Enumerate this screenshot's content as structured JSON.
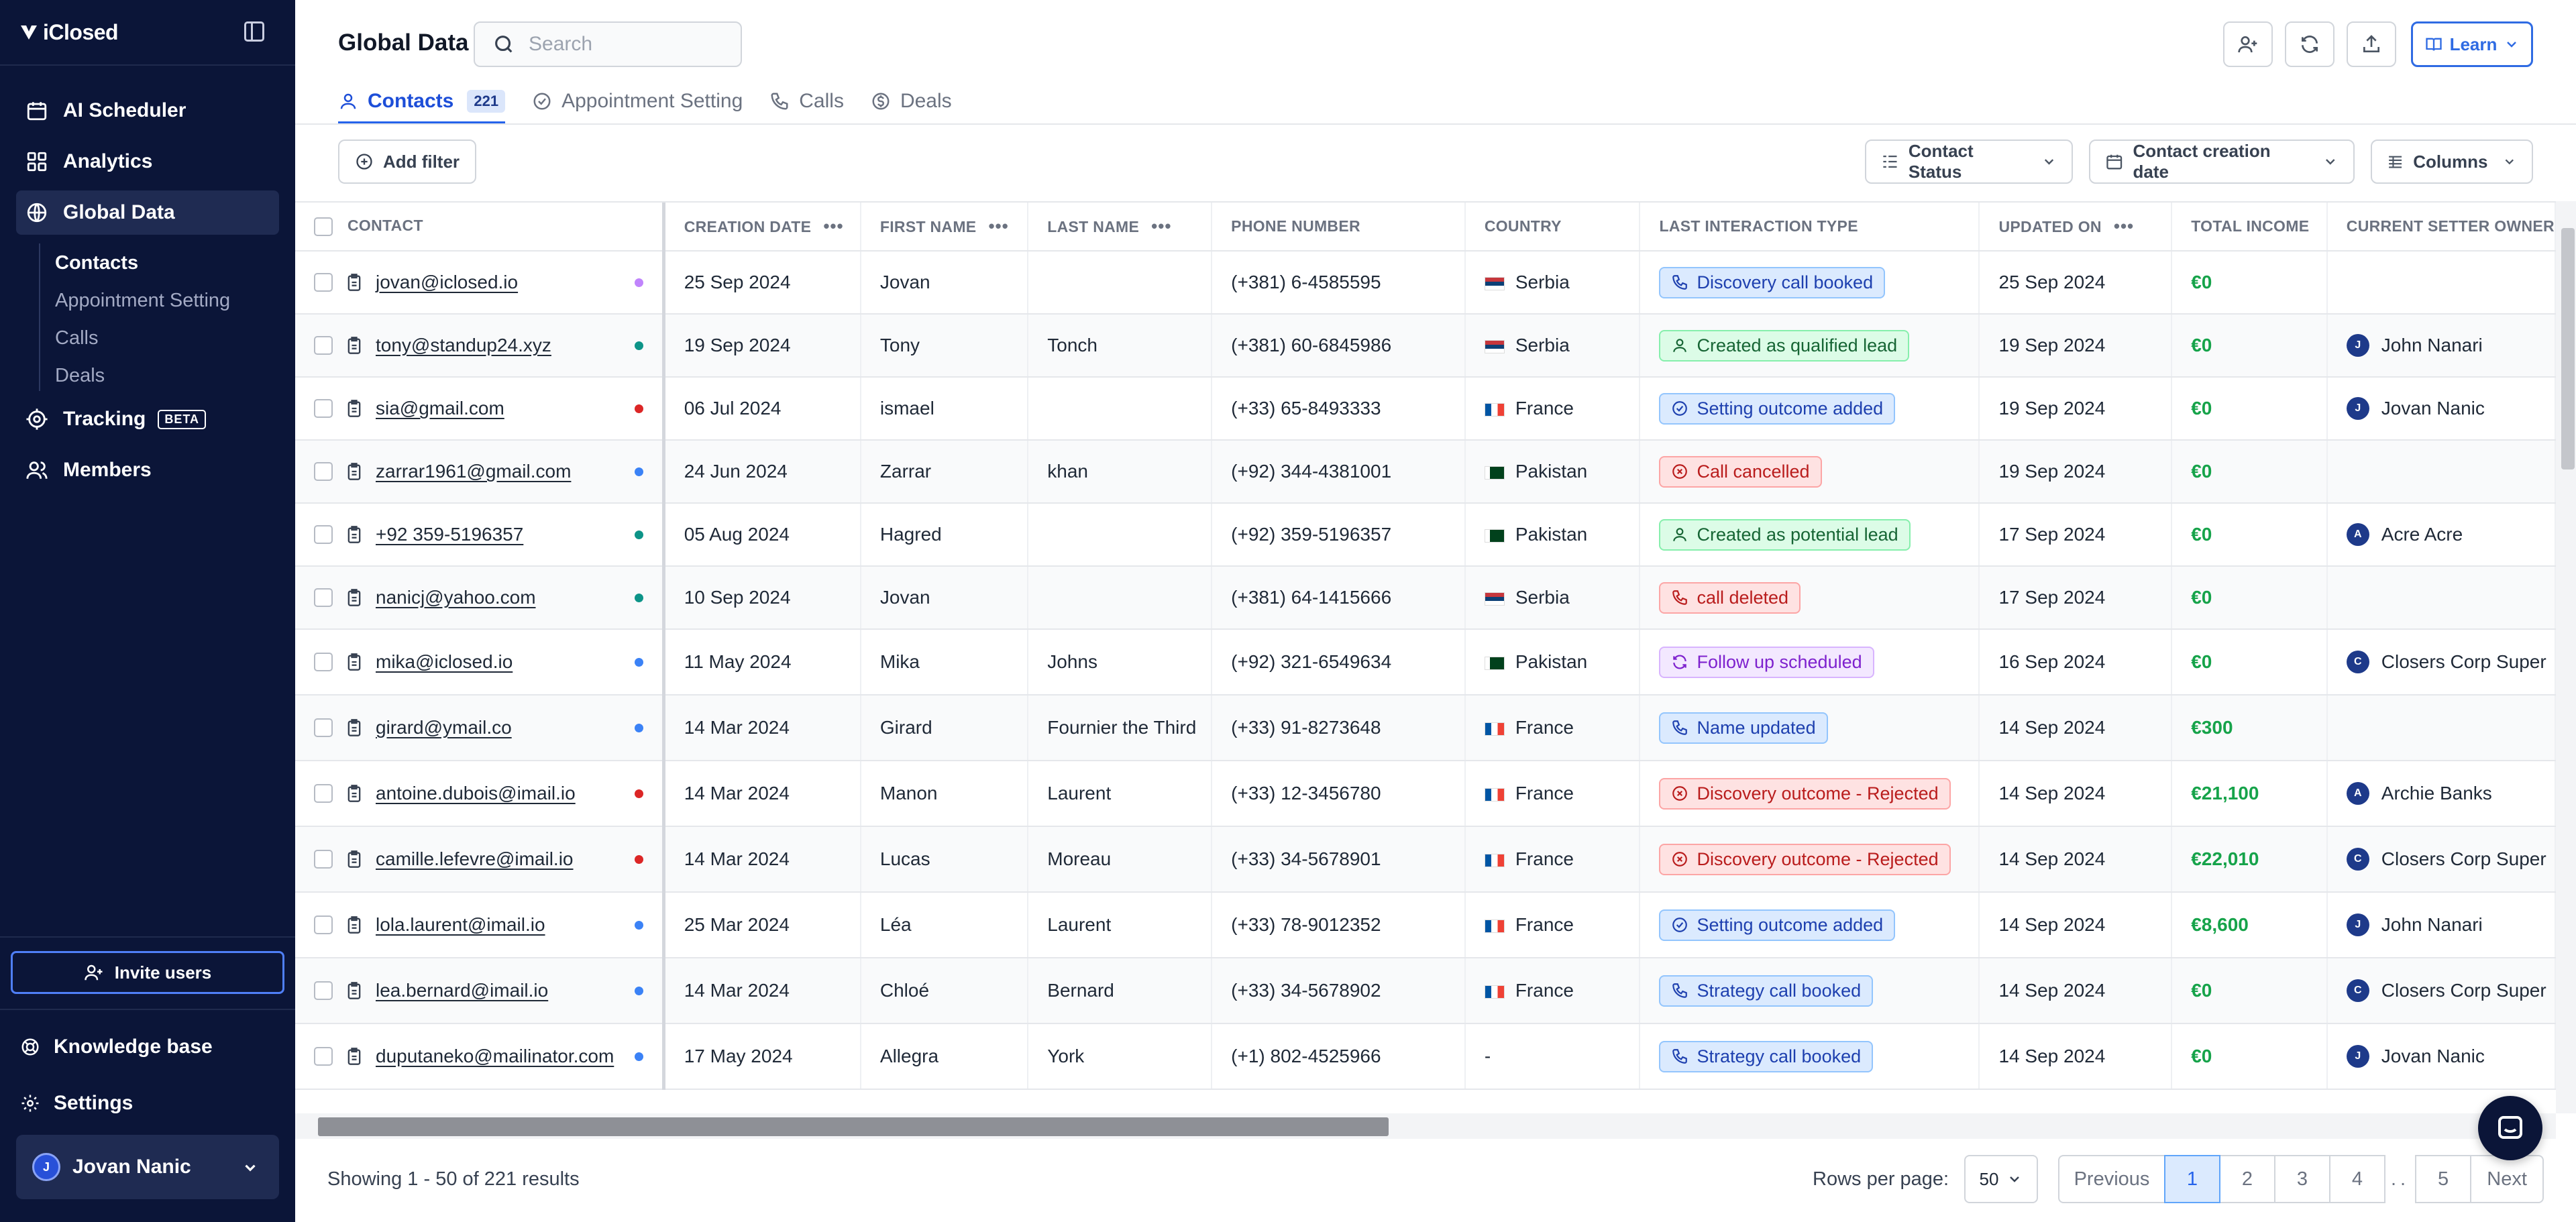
{
  "app": {
    "name": "iClosed"
  },
  "sidebar": {
    "nav": [
      {
        "label": "AI Scheduler",
        "icon": "calendar-icon"
      },
      {
        "label": "Analytics",
        "icon": "grid-icon"
      },
      {
        "label": "Global Data",
        "icon": "globe-icon"
      }
    ],
    "sub_items": [
      "Contacts",
      "Appointment Setting",
      "Calls",
      "Deals"
    ],
    "tracking": {
      "label": "Tracking",
      "badge": "BETA"
    },
    "members": "Members",
    "invite": "Invite users",
    "knowledge": "Knowledge base",
    "settings": "Settings",
    "user": {
      "name": "Jovan Nanic",
      "initial": "J"
    }
  },
  "header": {
    "title": "Global Data",
    "search_placeholder": "Search",
    "learn": "Learn"
  },
  "tabs": [
    {
      "label": "Contacts",
      "count": "221"
    },
    {
      "label": "Appointment Setting"
    },
    {
      "label": "Calls"
    },
    {
      "label": "Deals"
    }
  ],
  "toolbar": {
    "add_filter": "Add filter",
    "contact_status": "Contact Status",
    "creation_date": "Contact creation date",
    "columns": "Columns"
  },
  "table": {
    "headers": [
      "CONTACT",
      "CREATION DATE",
      "FIRST NAME",
      "LAST NAME",
      "PHONE NUMBER",
      "COUNTRY",
      "LAST INTERACTION TYPE",
      "UPDATED ON",
      "TOTAL INCOME",
      "CURRENT SETTER OWNER"
    ],
    "rows": [
      {
        "contact": "jovan@iclosed.io",
        "dot": "#c084fc",
        "created": "25 Sep 2024",
        "first": "Jovan",
        "last": "",
        "phone": "(+381) 6-4585595",
        "country": "Serbia",
        "flag": "rs",
        "interaction": "Discovery call booked",
        "itype": "blue",
        "iicon": "phone",
        "updated": "25 Sep 2024",
        "income": "€0",
        "owner": "",
        "owner_initial": ""
      },
      {
        "contact": "tony@standup24.xyz",
        "dot": "#0d9488",
        "created": "19 Sep 2024",
        "first": "Tony",
        "last": "Tonch",
        "phone": "(+381) 60-6845986",
        "country": "Serbia",
        "flag": "rs",
        "interaction": "Created as qualified lead",
        "itype": "green",
        "iicon": "user",
        "updated": "19 Sep 2024",
        "income": "€0",
        "owner": "John Nanari",
        "owner_initial": "J"
      },
      {
        "contact": "sia@gmail.com",
        "dot": "#dc2626",
        "created": "06 Jul 2024",
        "first": "ismael",
        "last": "",
        "phone": "(+33) 65-8493333",
        "country": "France",
        "flag": "fr",
        "interaction": "Setting outcome added",
        "itype": "blue",
        "iicon": "check",
        "updated": "19 Sep 2024",
        "income": "€0",
        "owner": "Jovan Nanic",
        "owner_initial": "J"
      },
      {
        "contact": "zarrar1961@gmail.com",
        "dot": "#3b82f6",
        "created": "24 Jun 2024",
        "first": "Zarrar",
        "last": "khan",
        "phone": "(+92) 344-4381001",
        "country": "Pakistan",
        "flag": "pk",
        "interaction": "Call cancelled",
        "itype": "red",
        "iicon": "x",
        "updated": "19 Sep 2024",
        "income": "€0",
        "owner": "",
        "owner_initial": ""
      },
      {
        "contact": "+92 359-5196357",
        "dot": "#0d9488",
        "created": "05 Aug 2024",
        "first": "Hagred",
        "last": "",
        "phone": "(+92) 359-5196357",
        "country": "Pakistan",
        "flag": "pk",
        "interaction": "Created as potential lead",
        "itype": "green",
        "iicon": "user",
        "updated": "17 Sep 2024",
        "income": "€0",
        "owner": "Acre Acre",
        "owner_initial": "A"
      },
      {
        "contact": "nanicj@yahoo.com",
        "dot": "#0d9488",
        "created": "10 Sep 2024",
        "first": "Jovan",
        "last": "",
        "phone": "(+381) 64-1415666",
        "country": "Serbia",
        "flag": "rs",
        "interaction": "call deleted",
        "itype": "red",
        "iicon": "phone",
        "updated": "17 Sep 2024",
        "income": "€0",
        "owner": "",
        "owner_initial": ""
      },
      {
        "contact": "mika@iclosed.io",
        "dot": "#3b82f6",
        "created": "11 May 2024",
        "first": "Mika",
        "last": "Johns",
        "phone": "(+92) 321-6549634",
        "country": "Pakistan",
        "flag": "pk",
        "interaction": "Follow up scheduled",
        "itype": "purple",
        "iicon": "refresh",
        "updated": "16 Sep 2024",
        "income": "€0",
        "owner": "Closers Corp Super",
        "owner_initial": "C"
      },
      {
        "contact": "girard@ymail.co",
        "dot": "#3b82f6",
        "created": "14 Mar 2024",
        "first": "Girard",
        "last": "Fournier the Third",
        "phone": "(+33) 91-8273648",
        "country": "France",
        "flag": "fr",
        "interaction": "Name updated",
        "itype": "blue",
        "iicon": "phone",
        "updated": "14 Sep 2024",
        "income": "€300",
        "owner": "",
        "owner_initial": ""
      },
      {
        "contact": "antoine.dubois@imail.io",
        "dot": "#dc2626",
        "created": "14 Mar 2024",
        "first": "Manon",
        "last": "Laurent",
        "phone": "(+33) 12-3456780",
        "country": "France",
        "flag": "fr",
        "interaction": "Discovery outcome - Rejected",
        "itype": "red",
        "iicon": "x",
        "updated": "14 Sep 2024",
        "income": "€21,100",
        "owner": "Archie Banks",
        "owner_initial": "A"
      },
      {
        "contact": "camille.lefevre@imail.io",
        "dot": "#dc2626",
        "created": "14 Mar 2024",
        "first": "Lucas",
        "last": "Moreau",
        "phone": "(+33) 34-5678901",
        "country": "France",
        "flag": "fr",
        "interaction": "Discovery outcome - Rejected",
        "itype": "red",
        "iicon": "x",
        "updated": "14 Sep 2024",
        "income": "€22,010",
        "owner": "Closers Corp Super",
        "owner_initial": "C"
      },
      {
        "contact": "lola.laurent@imail.io",
        "dot": "#3b82f6",
        "created": "25 Mar 2024",
        "first": "Léa",
        "last": "Laurent",
        "phone": "(+33) 78-9012352",
        "country": "France",
        "flag": "fr",
        "interaction": "Setting outcome added",
        "itype": "blue",
        "iicon": "check",
        "updated": "14 Sep 2024",
        "income": "€8,600",
        "owner": "John Nanari",
        "owner_initial": "J"
      },
      {
        "contact": "lea.bernard@imail.io",
        "dot": "#3b82f6",
        "created": "14 Mar 2024",
        "first": "Chloé",
        "last": "Bernard",
        "phone": "(+33) 34-5678902",
        "country": "France",
        "flag": "fr",
        "interaction": "Strategy call booked",
        "itype": "blue",
        "iicon": "phone",
        "updated": "14 Sep 2024",
        "income": "€0",
        "owner": "Closers Corp Super",
        "owner_initial": "C"
      },
      {
        "contact": "duputaneko@mailinator.com",
        "dot": "#3b82f6",
        "created": "17 May 2024",
        "first": "Allegra",
        "last": "York",
        "phone": "(+1) 802-4525966",
        "country": "-",
        "flag": "",
        "interaction": "Strategy call booked",
        "itype": "blue",
        "iicon": "phone",
        "updated": "14 Sep 2024",
        "income": "€0",
        "owner": "Jovan Nanic",
        "owner_initial": "J"
      }
    ]
  },
  "footer": {
    "showing": "Showing 1 - 50 of 221 results",
    "rows_per_page_label": "Rows per page:",
    "rows_per_page": "50",
    "pagination": [
      "Previous",
      "1",
      "2",
      "3",
      "4",
      "..",
      "5",
      "Next"
    ]
  }
}
